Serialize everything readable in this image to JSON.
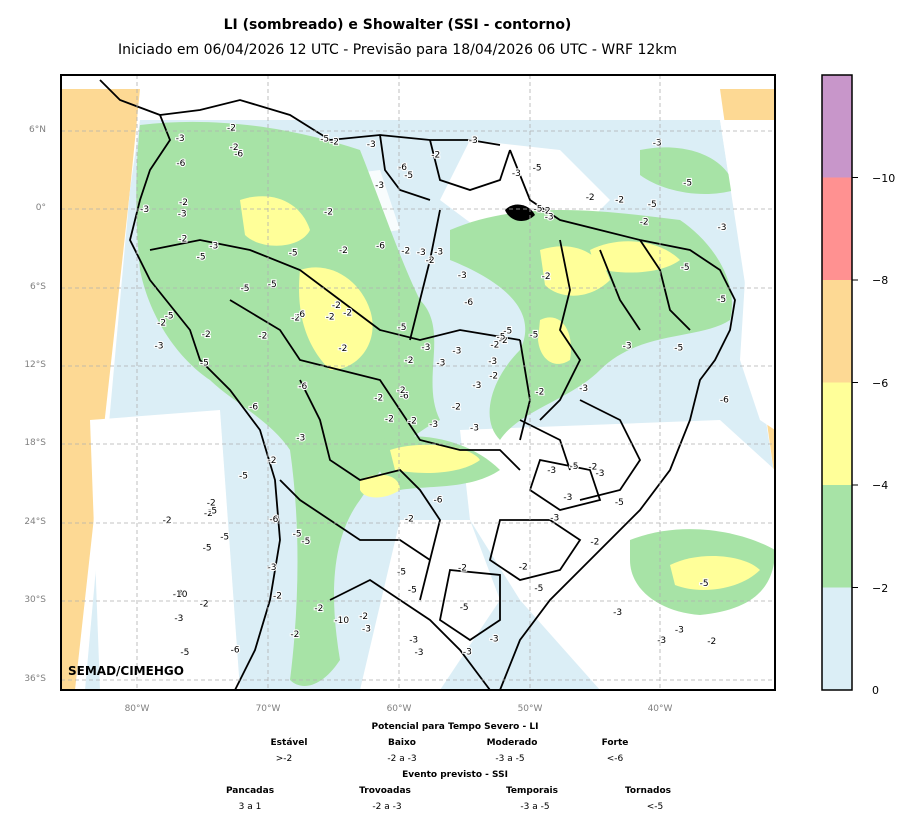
{
  "title": "LI (sombreado) e Showalter (SSI - contorno)",
  "subtitle": "Iniciado em 06/04/2026 12 UTC - Previsão para 18/04/2026 06 UTC - WRF 12km",
  "credit": "SEMAD/CIMEHGO",
  "lat_ticks": [
    "6°N",
    "0°",
    "6°S",
    "12°S",
    "18°S",
    "24°S",
    "30°S",
    "36°S"
  ],
  "lon_ticks": [
    "80°W",
    "70°W",
    "60°W",
    "50°W",
    "40°W"
  ],
  "colorbar": {
    "colors": [
      "#dbeef6",
      "#a7e3a6",
      "#ffff99",
      "#fdd994",
      "#ff9191",
      "#c896ca"
    ],
    "labels": [
      "0",
      "−2",
      "−4",
      "−6",
      "−8",
      "−10"
    ]
  },
  "legend": {
    "li_title": "Potencial para Tempo Severo - LI",
    "li_categories": [
      {
        "name": "Estável",
        "range": ">-2"
      },
      {
        "name": "Baixo",
        "range": "-2 a -3"
      },
      {
        "name": "Moderado",
        "range": "-3 a -5"
      },
      {
        "name": "Forte",
        "range": "<-6"
      }
    ],
    "ssi_title": "Evento previsto - SSI",
    "ssi_categories": [
      {
        "name": "Pancadas",
        "range": "3 a 1"
      },
      {
        "name": "Trovoadas",
        "range": "-2 a -3"
      },
      {
        "name": "Temporais",
        "range": "-3 a -5"
      },
      {
        "name": "Tornados",
        "range": "<-5"
      }
    ]
  },
  "contour_labels": [
    "-3",
    "-5",
    "-6",
    "-3",
    "-2",
    "-5",
    "-5",
    "-3",
    "-2",
    "-3",
    "-6",
    "-2",
    "-5",
    "-3",
    "-2",
    "-2",
    "-6",
    "-2",
    "-6",
    "-5",
    "-2",
    "-3",
    "-2",
    "-3",
    "-2",
    "-3",
    "-3",
    "-5",
    "-3",
    "-3",
    "-5",
    "-2",
    "-5",
    "-2",
    "-5",
    "-2",
    "-5",
    "-3",
    "-5",
    "-2",
    "-3",
    "-2",
    "-2",
    "-3",
    "-2",
    "-3",
    "-5",
    "-5",
    "-2",
    "-5",
    "-5",
    "-3",
    "-3",
    "-5",
    "-3",
    "-2",
    "-3",
    "-2",
    "-5",
    "-2",
    "-6",
    "-5",
    "-5",
    "-2",
    "-2",
    "-3",
    "-3",
    "-3",
    "-2",
    "-10",
    "-5",
    "-2",
    "-10",
    "-6",
    "-5",
    "-5",
    "-5",
    "-3",
    "-2",
    "-2",
    "-3",
    "-5",
    "-6",
    "-3",
    "-3",
    "-2",
    "-6",
    "-5",
    "-2",
    "-3",
    "-2",
    "-3",
    "-5",
    "-3",
    "-6",
    "-5",
    "-6",
    "-5",
    "-6",
    "-2",
    "-5",
    "-2",
    "-2",
    "-3",
    "-2",
    "-2",
    "-2",
    "-2",
    "-2",
    "-5",
    "-6",
    "-3",
    "-2",
    "-3",
    "-3",
    "-2",
    "-3",
    "-2",
    "-3",
    "-3",
    "-3",
    "-2",
    "-5",
    "-3",
    "-6",
    "-2",
    "-5",
    "-3",
    "-2",
    "-2",
    "-3",
    "-2",
    "-2",
    "-5",
    "-2",
    "-2"
  ]
}
